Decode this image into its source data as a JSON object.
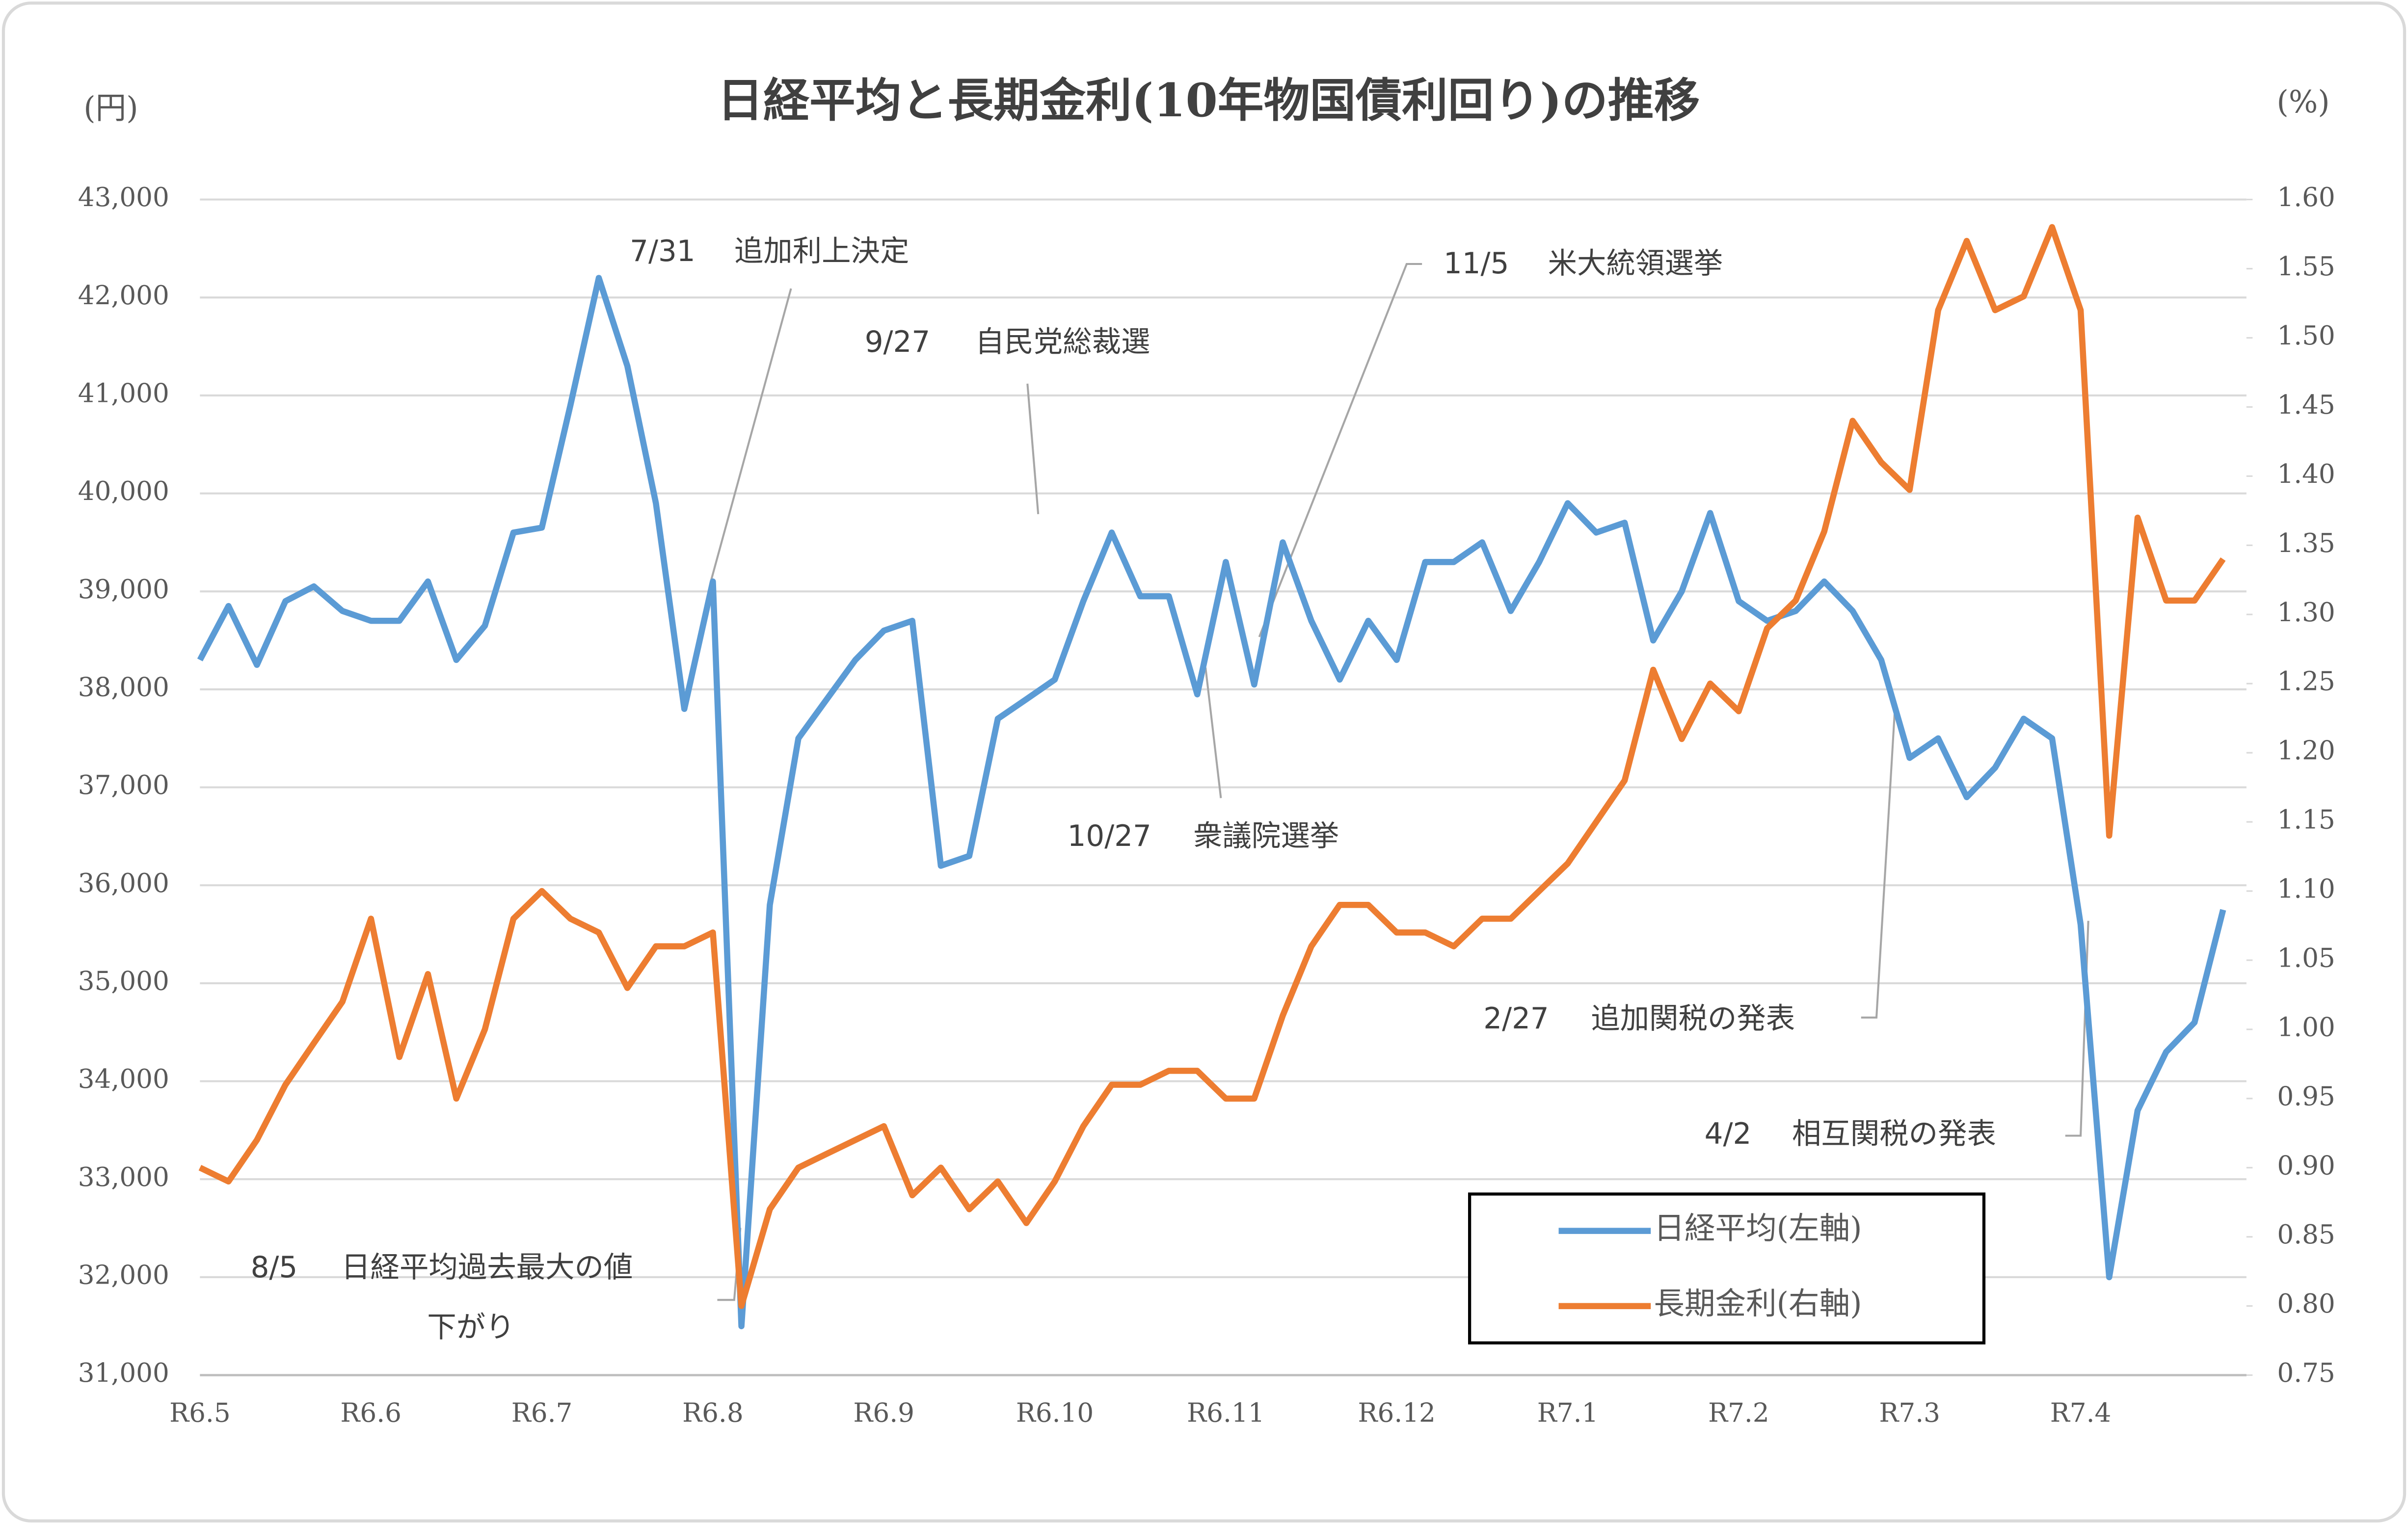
{
  "chart_data": {
    "type": "line",
    "title": "日経平均と長期金利(10年物国債利回り)の推移",
    "y_label": "(円)",
    "y2_label": "(%)",
    "categories": [
      "R6.5",
      null,
      null,
      null,
      null,
      null,
      "R6.6",
      null,
      null,
      null,
      null,
      null,
      "R6.7",
      null,
      null,
      null,
      null,
      null,
      "R6.8",
      null,
      null,
      null,
      null,
      null,
      "R6.9",
      null,
      null,
      null,
      null,
      null,
      "R6.10",
      null,
      null,
      null,
      null,
      null,
      "R6.11",
      null,
      null,
      null,
      null,
      null,
      "R6.12",
      null,
      null,
      null,
      null,
      null,
      "R7.1",
      null,
      null,
      null,
      null,
      null,
      "R7.2",
      null,
      null,
      null,
      null,
      null,
      "R7.3",
      null,
      null,
      null,
      null,
      null,
      "R7.4",
      null,
      null,
      null,
      null,
      null
    ],
    "series": [
      {
        "name": "日経平均(左軸)",
        "color": "#5b9bd5",
        "axis": "y",
        "values": [
          38300,
          38850,
          38250,
          38900,
          39050,
          38800,
          38700,
          38700,
          39100,
          38300,
          38650,
          39600,
          39650,
          40900,
          42200,
          41300,
          39900,
          37800,
          39100,
          31500,
          35800,
          37500,
          37900,
          38300,
          38600,
          38700,
          36200,
          36300,
          37700,
          37900,
          38100,
          38900,
          39600,
          38950,
          38950,
          37950,
          39300,
          38050,
          39500,
          38700,
          38100,
          38700,
          38300,
          39300,
          39300,
          39500,
          38800,
          39300,
          39900,
          39600,
          39700,
          38500,
          39000,
          39800,
          38900,
          38700,
          38800,
          39100,
          38800,
          38300,
          37300,
          37500,
          36900,
          37200,
          37700,
          37500,
          35600,
          32000,
          33700,
          34300,
          34600,
          35750
        ]
      },
      {
        "name": "長期金利(右軸)",
        "color": "#ed7d31",
        "axis": "y2",
        "values": [
          0.9,
          0.89,
          0.92,
          0.96,
          0.99,
          1.02,
          1.08,
          0.98,
          1.04,
          0.95,
          1.0,
          1.08,
          1.1,
          1.08,
          1.07,
          1.03,
          1.06,
          1.06,
          1.07,
          0.8,
          0.87,
          0.9,
          0.91,
          0.92,
          0.93,
          0.88,
          0.9,
          0.87,
          0.89,
          0.86,
          0.89,
          0.93,
          0.96,
          0.96,
          0.97,
          0.97,
          0.95,
          0.95,
          1.01,
          1.06,
          1.09,
          1.09,
          1.07,
          1.07,
          1.06,
          1.08,
          1.08,
          1.1,
          1.12,
          1.15,
          1.18,
          1.26,
          1.21,
          1.25,
          1.23,
          1.29,
          1.31,
          1.36,
          1.44,
          1.41,
          1.39,
          1.52,
          1.57,
          1.52,
          1.53,
          1.58,
          1.52,
          1.14,
          1.37,
          1.31,
          1.31,
          1.34
        ]
      }
    ],
    "ylim": [
      31000,
      43000
    ],
    "yticks": [
      {
        "value": 31000,
        "label": "31,000"
      },
      {
        "value": 32000,
        "label": "32,000"
      },
      {
        "value": 33000,
        "label": "33,000"
      },
      {
        "value": 34000,
        "label": "34,000"
      },
      {
        "value": 35000,
        "label": "35,000"
      },
      {
        "value": 36000,
        "label": "36,000"
      },
      {
        "value": 37000,
        "label": "37,000"
      },
      {
        "value": 38000,
        "label": "38,000"
      },
      {
        "value": 39000,
        "label": "39,000"
      },
      {
        "value": 40000,
        "label": "40,000"
      },
      {
        "value": 41000,
        "label": "41,000"
      },
      {
        "value": 42000,
        "label": "42,000"
      },
      {
        "value": 43000,
        "label": "43,000"
      }
    ],
    "y2lim": [
      0.75,
      1.6
    ],
    "y2ticks": [
      0.75,
      {
        "value": 0.8,
        "label": "0.80"
      },
      0.85,
      {
        "value": 0.9,
        "label": "0.90"
      },
      0.95,
      {
        "value": 1.0,
        "label": "1.00"
      },
      1.05,
      {
        "value": 1.1,
        "label": "1.10"
      },
      1.15,
      {
        "value": 1.2,
        "label": "1.20"
      },
      1.25,
      {
        "value": 1.3,
        "label": "1.30"
      },
      1.35,
      {
        "value": 1.4,
        "label": "1.40"
      },
      1.45,
      {
        "value": 1.5,
        "label": "1.50"
      },
      1.55,
      {
        "value": 1.6,
        "label": "1.60"
      }
    ],
    "grid": true,
    "legend": "lower right",
    "annotations": [
      {
        "date": "7/31",
        "label": "追加利上決定"
      },
      {
        "date": "9/27",
        "label": "自民党総裁選"
      },
      {
        "date": "11/5",
        "label": "米大統領選挙"
      },
      {
        "date": "10/27",
        "label": "衆議院選挙"
      },
      {
        "date": "2/27",
        "label": "追加関税の発表"
      },
      {
        "date": "4/2",
        "label": "相互関税の発表"
      },
      {
        "date": "8/5",
        "label": [
          "日経平均過去最大の値",
          "下がり"
        ]
      }
    ]
  }
}
